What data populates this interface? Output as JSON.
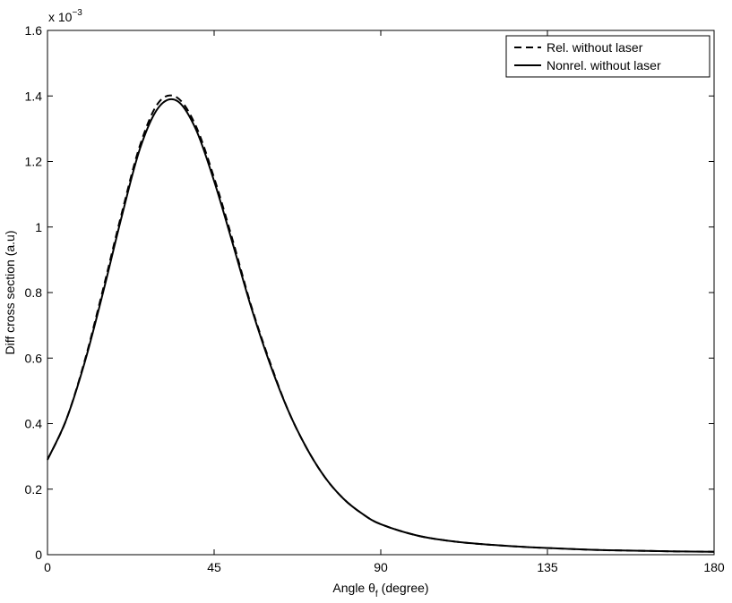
{
  "chart_data": {
    "type": "line",
    "xlabel": "Angle θ",
    "xlabel_sub": "f",
    "xlabel_unit": "(degree)",
    "ylabel": "Diff cross section (a.u)",
    "y_multiplier": {
      "base": "x 10",
      "exponent": "−3"
    },
    "xlim": [
      0,
      180
    ],
    "ylim": [
      0,
      1.6
    ],
    "xticks": [
      0,
      45,
      90,
      135,
      180
    ],
    "xtick_labels": [
      "0",
      "45",
      "90",
      "135",
      "180"
    ],
    "yticks": [
      0,
      0.2,
      0.4,
      0.6,
      0.8,
      1.0,
      1.2,
      1.4,
      1.6
    ],
    "ytick_labels": [
      "0",
      "0.2",
      "0.4",
      "0.6",
      "0.8",
      "1",
      "1.2",
      "1.4",
      "1.6"
    ],
    "grid": false,
    "legend_position": "top-right",
    "series": [
      {
        "name": "Rel. without laser",
        "style": "dashed",
        "color": "#000000",
        "x": [
          0,
          5,
          10,
          15,
          20,
          25,
          30,
          35,
          40,
          45,
          50,
          55,
          60,
          65,
          70,
          75,
          80,
          85,
          90,
          100,
          110,
          120,
          130,
          140,
          150,
          160,
          170,
          180
        ],
        "y": [
          0.29,
          0.41,
          0.59,
          0.81,
          1.04,
          1.25,
          1.38,
          1.395,
          1.31,
          1.15,
          0.96,
          0.76,
          0.59,
          0.44,
          0.325,
          0.235,
          0.17,
          0.125,
          0.093,
          0.058,
          0.04,
          0.03,
          0.023,
          0.018,
          0.014,
          0.012,
          0.01,
          0.009
        ]
      },
      {
        "name": "Nonrel. without laser",
        "style": "solid",
        "color": "#000000",
        "x": [
          0,
          5,
          10,
          15,
          20,
          25,
          30,
          35,
          40,
          45,
          50,
          55,
          60,
          65,
          70,
          75,
          80,
          85,
          90,
          100,
          110,
          120,
          130,
          140,
          150,
          160,
          170,
          180
        ],
        "y": [
          0.29,
          0.41,
          0.585,
          0.8,
          1.03,
          1.24,
          1.365,
          1.385,
          1.3,
          1.14,
          0.95,
          0.755,
          0.585,
          0.44,
          0.325,
          0.235,
          0.17,
          0.125,
          0.093,
          0.058,
          0.04,
          0.03,
          0.023,
          0.018,
          0.014,
          0.012,
          0.01,
          0.009
        ]
      }
    ]
  }
}
